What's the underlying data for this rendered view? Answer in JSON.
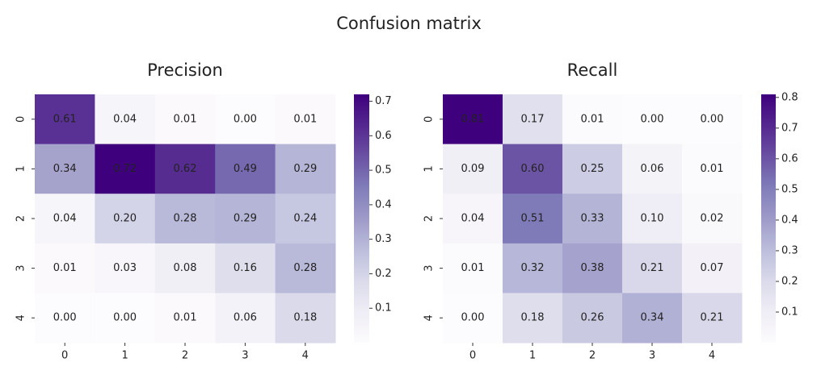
{
  "title": "Confusion matrix",
  "chart_data": [
    {
      "type": "heatmap",
      "title": "Precision",
      "colormap": "Purples",
      "categories": [
        "0",
        "1",
        "2",
        "3",
        "4"
      ],
      "row_categories": [
        "0",
        "1",
        "2",
        "3",
        "4"
      ],
      "values": [
        [
          0.61,
          0.04,
          0.01,
          0.0,
          0.01
        ],
        [
          0.34,
          0.72,
          0.62,
          0.49,
          0.29
        ],
        [
          0.04,
          0.2,
          0.28,
          0.29,
          0.24
        ],
        [
          0.01,
          0.03,
          0.08,
          0.16,
          0.28
        ],
        [
          0.0,
          0.0,
          0.01,
          0.06,
          0.18
        ]
      ],
      "value_labels": [
        [
          "0.61",
          "0.04",
          "0.01",
          "0.00",
          "0.01"
        ],
        [
          "0.34",
          "0.72",
          "0.62",
          "0.49",
          "0.29"
        ],
        [
          "0.04",
          "0.20",
          "0.28",
          "0.29",
          "0.24"
        ],
        [
          "0.01",
          "0.03",
          "0.08",
          "0.16",
          "0.28"
        ],
        [
          "0.00",
          "0.00",
          "0.01",
          "0.06",
          "0.18"
        ]
      ],
      "clim": [
        0,
        0.72
      ],
      "cticks": [
        0.1,
        0.2,
        0.3,
        0.4,
        0.5,
        0.6,
        0.7
      ]
    },
    {
      "type": "heatmap",
      "title": "Recall",
      "colormap": "Purples",
      "categories": [
        "0",
        "1",
        "2",
        "3",
        "4"
      ],
      "row_categories": [
        "0",
        "1",
        "2",
        "3",
        "4"
      ],
      "values": [
        [
          0.81,
          0.17,
          0.01,
          0.0,
          0.0
        ],
        [
          0.09,
          0.6,
          0.25,
          0.06,
          0.01
        ],
        [
          0.04,
          0.51,
          0.33,
          0.1,
          0.02
        ],
        [
          0.01,
          0.32,
          0.38,
          0.21,
          0.07
        ],
        [
          0.0,
          0.18,
          0.26,
          0.34,
          0.21
        ]
      ],
      "value_labels": [
        [
          "0.81",
          "0.17",
          "0.01",
          "0.00",
          "0.00"
        ],
        [
          "0.09",
          "0.60",
          "0.25",
          "0.06",
          "0.01"
        ],
        [
          "0.04",
          "0.51",
          "0.33",
          "0.10",
          "0.02"
        ],
        [
          "0.01",
          "0.32",
          "0.38",
          "0.21",
          "0.07"
        ],
        [
          "0.00",
          "0.18",
          "0.26",
          "0.34",
          "0.21"
        ]
      ],
      "clim": [
        0,
        0.81
      ],
      "cticks": [
        0.1,
        0.2,
        0.3,
        0.4,
        0.5,
        0.6,
        0.7,
        0.8
      ]
    }
  ]
}
